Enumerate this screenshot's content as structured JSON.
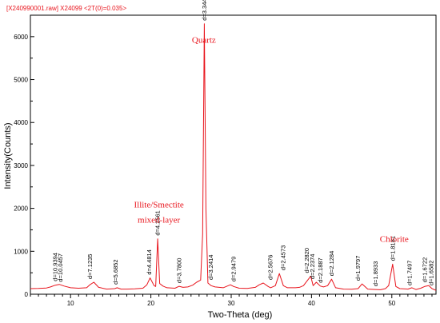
{
  "chart_data": {
    "type": "line",
    "header": "[X240990001.raw] X24099 <2T(0)=0.035>",
    "xlabel": "Two-Theta (deg)",
    "ylabel": "Intensity(Counts)",
    "xlim": [
      5,
      55.5
    ],
    "ylim": [
      0,
      6500
    ],
    "xticks": [
      "10",
      "20",
      "30",
      "40",
      "50"
    ],
    "yticks": [
      "0",
      "1000",
      "2000",
      "3000",
      "4000",
      "5000",
      "6000"
    ],
    "grid": false,
    "colors": {
      "series": "#e8141c",
      "axis": "#000000"
    },
    "series": [
      {
        "x": [
          5,
          6,
          7,
          7.5,
          8.1,
          8.6,
          9.2,
          10,
          11,
          12,
          12.4,
          12.9,
          13.5,
          14.5,
          15.5,
          15.8,
          16.3,
          17,
          18,
          19,
          19.5,
          19.9,
          20.4,
          20.6,
          20.85,
          21.1,
          21.5,
          22,
          23,
          23.52,
          24,
          24.6,
          25.2,
          25.7,
          26.2,
          26.45,
          26.65,
          26.85,
          27.1,
          27.5,
          28,
          29,
          29.9,
          30.3,
          31,
          32,
          33,
          33.5,
          34,
          34.6,
          34.9,
          35.5,
          36,
          36.5,
          37,
          38,
          38.5,
          39,
          39.4,
          39.9,
          40.2,
          40.6,
          41.1,
          41.5,
          42,
          42.5,
          43,
          44,
          45,
          45.8,
          46.3,
          47,
          48,
          48.6,
          49.2,
          49.6,
          50.1,
          50.5,
          51,
          52,
          52.5,
          53,
          53.6,
          54.1,
          54.6,
          55,
          55.5
        ],
        "values": [
          130,
          135,
          145,
          170,
          210,
          230,
          190,
          150,
          140,
          150,
          220,
          280,
          160,
          120,
          130,
          150,
          120,
          120,
          125,
          140,
          220,
          380,
          200,
          180,
          1290,
          250,
          190,
          150,
          140,
          185,
          160,
          170,
          210,
          280,
          330,
          1400,
          6300,
          2000,
          260,
          200,
          170,
          150,
          220,
          180,
          140,
          135,
          160,
          220,
          260,
          180,
          150,
          200,
          480,
          200,
          150,
          150,
          160,
          200,
          300,
          420,
          200,
          280,
          190,
          170,
          200,
          350,
          150,
          120,
          115,
          130,
          240,
          120,
          110,
          105,
          130,
          200,
          700,
          180,
          130,
          120,
          150,
          110,
          140,
          180,
          200,
          130,
          90
        ]
      }
    ],
    "peak_labels": [
      {
        "x": 8.1,
        "y": 230,
        "text": "d=10.9394"
      },
      {
        "x": 8.75,
        "y": 210,
        "text": "d=10.0457"
      },
      {
        "x": 12.4,
        "y": 280,
        "text": "d=7.1235"
      },
      {
        "x": 15.6,
        "y": 150,
        "text": "d=5.6852"
      },
      {
        "x": 19.8,
        "y": 380,
        "text": "d=4.4814"
      },
      {
        "x": 20.85,
        "y": 1290,
        "text": "d=4.2561"
      },
      {
        "x": 23.52,
        "y": 185,
        "text": "d=3.7800"
      },
      {
        "x": 26.65,
        "y": 6300,
        "text": "d=3.3440"
      },
      {
        "x": 27.45,
        "y": 260,
        "text": "d=3.2414"
      },
      {
        "x": 30.3,
        "y": 220,
        "text": "d=2.9479"
      },
      {
        "x": 34.9,
        "y": 260,
        "text": "d=2.5676"
      },
      {
        "x": 36.5,
        "y": 480,
        "text": "d=2.4573"
      },
      {
        "x": 39.4,
        "y": 420,
        "text": "d=2.2820"
      },
      {
        "x": 40.1,
        "y": 280,
        "text": "d=2.2374"
      },
      {
        "x": 41.1,
        "y": 190,
        "text": "d=2.1887"
      },
      {
        "x": 42.5,
        "y": 350,
        "text": "d=2.1284"
      },
      {
        "x": 45.8,
        "y": 240,
        "text": "d=1.9797"
      },
      {
        "x": 48.0,
        "y": 110,
        "text": "d=1.8933"
      },
      {
        "x": 50.1,
        "y": 700,
        "text": "d=1.8181"
      },
      {
        "x": 52.2,
        "y": 130,
        "text": "d=1.7497"
      },
      {
        "x": 54.1,
        "y": 200,
        "text": "d=1.6722"
      },
      {
        "x": 54.9,
        "y": 130,
        "text": "d=1.6582"
      }
    ],
    "annotations": [
      {
        "text": "Quartz",
        "x": 26.6,
        "y": 5860
      },
      {
        "text": "Illite/Smectite",
        "x": 21.0,
        "y": 2020
      },
      {
        "text": "mixed-layer",
        "x": 21.0,
        "y": 1665
      },
      {
        "text": "Chlorite",
        "x": 50.3,
        "y": 1220
      }
    ]
  }
}
